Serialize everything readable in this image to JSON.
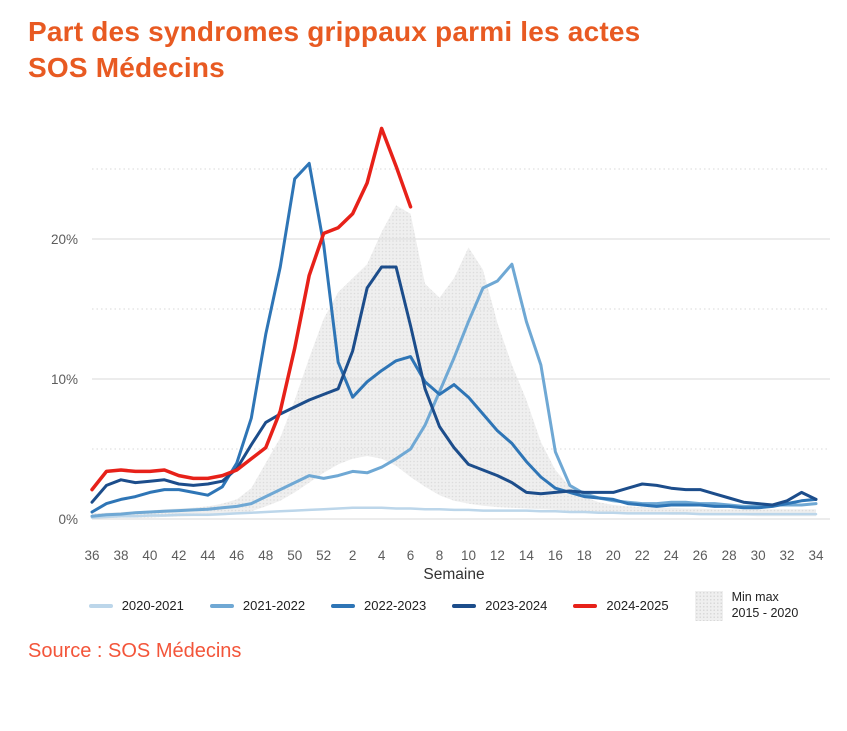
{
  "title": {
    "line1": "Part des syndromes grippaux parmi les actes",
    "line2": "SOS Médecins"
  },
  "source": "Source : SOS Médecins",
  "colors": {
    "title": "#e85a22",
    "source": "#f3553a",
    "grid_major": "#e0e0e0",
    "grid_minor": "#d8d8d8",
    "tick_text": "#5c5c5c",
    "axis_title_text": "#333333",
    "band_fill": "#efefef",
    "band_dot": "#dcdcdc"
  },
  "chart_data": {
    "type": "line",
    "title": "Part des syndromes grippaux parmi les actes SOS Médecins",
    "xlabel": "Semaine",
    "ylabel": "",
    "ylim": [
      0,
      28.5
    ],
    "grid": "horizontal",
    "legend_position": "bottom",
    "y_ticks_major": [
      {
        "v": 0,
        "label": "0%"
      },
      {
        "v": 10,
        "label": "10%"
      },
      {
        "v": 20,
        "label": "20%"
      }
    ],
    "y_ticks_minor": [
      5,
      15,
      25
    ],
    "weeks": [
      36,
      37,
      38,
      39,
      40,
      41,
      42,
      43,
      44,
      45,
      46,
      47,
      48,
      49,
      50,
      51,
      52,
      1,
      2,
      3,
      4,
      5,
      6,
      7,
      8,
      9,
      10,
      11,
      12,
      13,
      14,
      15,
      16,
      17,
      18,
      19,
      20,
      21,
      22,
      23,
      24,
      25,
      26,
      27,
      28,
      29,
      30,
      31,
      32,
      33,
      34
    ],
    "band": {
      "name_line1": "Min max",
      "name_line2": "2015 - 2020",
      "upper": [
        0.4,
        0.45,
        0.5,
        0.55,
        0.6,
        0.7,
        0.75,
        0.8,
        0.9,
        1.1,
        1.4,
        2.2,
        4.0,
        5.8,
        8.5,
        11.5,
        14.3,
        16.2,
        17.2,
        18.2,
        20.5,
        22.4,
        21.8,
        16.8,
        15.8,
        17.2,
        19.4,
        17.8,
        14.0,
        11.0,
        8.5,
        5.5,
        3.5,
        2.3,
        1.6,
        1.2,
        1.0,
        0.9,
        0.85,
        0.8,
        0.8,
        0.75,
        0.75,
        0.7,
        0.7,
        0.7,
        0.7,
        0.7,
        0.7,
        0.7,
        0.7
      ],
      "lower": [
        0.05,
        0.05,
        0.1,
        0.1,
        0.1,
        0.15,
        0.15,
        0.2,
        0.2,
        0.25,
        0.35,
        0.55,
        0.9,
        1.3,
        1.9,
        2.6,
        3.3,
        3.9,
        4.3,
        4.5,
        4.3,
        3.8,
        3.0,
        2.3,
        1.7,
        1.3,
        1.1,
        0.95,
        0.85,
        0.8,
        0.75,
        0.7,
        0.65,
        0.6,
        0.55,
        0.5,
        0.45,
        0.4,
        0.4,
        0.35,
        0.3,
        0.3,
        0.3,
        0.25,
        0.25,
        0.25,
        0.2,
        0.2,
        0.2,
        0.2,
        0.2
      ]
    },
    "series": [
      {
        "name": "2020-2021",
        "color": "#bcd6ea",
        "width": 2.5,
        "values": [
          0.1,
          0.15,
          0.2,
          0.2,
          0.25,
          0.25,
          0.3,
          0.3,
          0.3,
          0.35,
          0.4,
          0.45,
          0.5,
          0.55,
          0.6,
          0.65,
          0.7,
          0.75,
          0.8,
          0.8,
          0.8,
          0.75,
          0.75,
          0.7,
          0.7,
          0.65,
          0.65,
          0.6,
          0.6,
          0.6,
          0.6,
          0.55,
          0.55,
          0.5,
          0.5,
          0.45,
          0.45,
          0.4,
          0.4,
          0.4,
          0.4,
          0.4,
          0.35,
          0.35,
          0.35,
          0.35,
          0.35,
          0.35,
          0.35,
          0.35,
          0.35
        ]
      },
      {
        "name": "2021-2022",
        "color": "#6fa8d4",
        "width": 3,
        "values": [
          0.2,
          0.3,
          0.35,
          0.45,
          0.5,
          0.55,
          0.6,
          0.65,
          0.7,
          0.8,
          0.9,
          1.1,
          1.6,
          2.1,
          2.6,
          3.1,
          2.9,
          3.1,
          3.4,
          3.3,
          3.7,
          4.3,
          5.0,
          6.7,
          9.1,
          11.5,
          14.1,
          16.5,
          17.0,
          18.2,
          14.1,
          11.0,
          4.8,
          2.4,
          1.8,
          1.5,
          1.3,
          1.2,
          1.1,
          1.1,
          1.2,
          1.2,
          1.1,
          1.1,
          1.0,
          0.9,
          0.9,
          1.0,
          1.0,
          1.0,
          1.1
        ]
      },
      {
        "name": "2022-2023",
        "color": "#2e75b6",
        "width": 3,
        "values": [
          0.5,
          1.1,
          1.4,
          1.6,
          1.9,
          2.1,
          2.1,
          1.9,
          1.7,
          2.3,
          4.0,
          7.2,
          13.2,
          18.0,
          24.3,
          25.4,
          19.6,
          11.2,
          8.7,
          9.8,
          10.6,
          11.3,
          11.6,
          9.8,
          8.9,
          9.6,
          8.7,
          7.5,
          6.3,
          5.4,
          4.1,
          3.0,
          2.2,
          1.9,
          1.6,
          1.5,
          1.4,
          1.1,
          1.0,
          0.9,
          1.0,
          1.0,
          1.0,
          0.9,
          0.9,
          0.8,
          0.8,
          0.9,
          1.1,
          1.3,
          1.4
        ]
      },
      {
        "name": "2023-2024",
        "color": "#1c4d8b",
        "width": 3,
        "values": [
          1.2,
          2.4,
          2.8,
          2.6,
          2.7,
          2.8,
          2.5,
          2.4,
          2.5,
          2.7,
          3.6,
          5.3,
          6.9,
          7.5,
          8.0,
          8.5,
          8.9,
          9.3,
          12.0,
          16.5,
          18.0,
          18.0,
          13.8,
          9.3,
          6.6,
          5.1,
          3.9,
          3.5,
          3.1,
          2.6,
          1.9,
          1.8,
          1.9,
          2.0,
          1.9,
          1.9,
          1.9,
          2.2,
          2.5,
          2.4,
          2.2,
          2.1,
          2.1,
          1.8,
          1.5,
          1.2,
          1.1,
          1.0,
          1.3,
          1.9,
          1.4
        ]
      },
      {
        "name": "2024-2025",
        "color": "#e72119",
        "width": 3.5,
        "values": [
          2.1,
          3.4,
          3.5,
          3.4,
          3.4,
          3.5,
          3.1,
          2.9,
          2.9,
          3.1,
          3.5,
          4.3,
          5.1,
          7.7,
          12.2,
          17.4,
          20.4,
          20.8,
          21.8,
          24.0,
          27.9,
          25.2,
          22.3,
          null,
          null,
          null,
          null,
          null,
          null,
          null,
          null,
          null,
          null,
          null,
          null,
          null,
          null,
          null,
          null,
          null,
          null,
          null,
          null,
          null,
          null,
          null,
          null,
          null,
          null,
          null,
          null
        ]
      }
    ]
  }
}
